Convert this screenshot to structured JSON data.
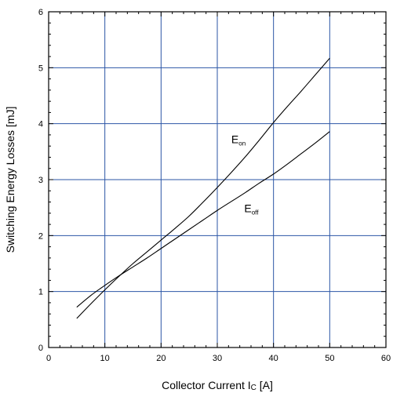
{
  "chart_data": {
    "type": "line",
    "xlabel_main": "Collector Current I",
    "xlabel_sub": "C",
    "xlabel_unit": " [A]",
    "ylabel": "Switching Energy Losses [mJ]",
    "xlim": [
      0,
      60
    ],
    "ylim": [
      0,
      6
    ],
    "xticks": [
      "0",
      "10",
      "20",
      "30",
      "40",
      "50",
      "60"
    ],
    "yticks": [
      "0",
      "1",
      "2",
      "3",
      "4",
      "5",
      "6"
    ],
    "grid": true,
    "series": [
      {
        "name": "E_on",
        "label_main": "E",
        "label_sub": "on",
        "x": [
          5,
          7.5,
          10,
          12.5,
          15,
          17.5,
          20,
          22.5,
          25,
          27.5,
          30,
          32.5,
          35,
          37.5,
          40,
          42.5,
          45,
          47.5,
          50
        ],
        "y": [
          0.52,
          0.78,
          1.03,
          1.27,
          1.5,
          1.71,
          1.92,
          2.13,
          2.35,
          2.6,
          2.86,
          3.13,
          3.41,
          3.71,
          4.02,
          4.31,
          4.59,
          4.88,
          5.17
        ]
      },
      {
        "name": "E_off",
        "label_main": "E",
        "label_sub": "off",
        "x": [
          5,
          7.5,
          10,
          12.5,
          15,
          17.5,
          20,
          22.5,
          25,
          27.5,
          30,
          32.5,
          35,
          37.5,
          40,
          42.5,
          45,
          47.5,
          50
        ],
        "y": [
          0.72,
          0.93,
          1.11,
          1.28,
          1.44,
          1.6,
          1.77,
          1.94,
          2.11,
          2.28,
          2.45,
          2.61,
          2.77,
          2.94,
          3.1,
          3.28,
          3.47,
          3.66,
          3.86
        ]
      }
    ],
    "colors": {
      "grid": "#2b56a6",
      "line": "#000000",
      "axis": "#000000"
    }
  }
}
